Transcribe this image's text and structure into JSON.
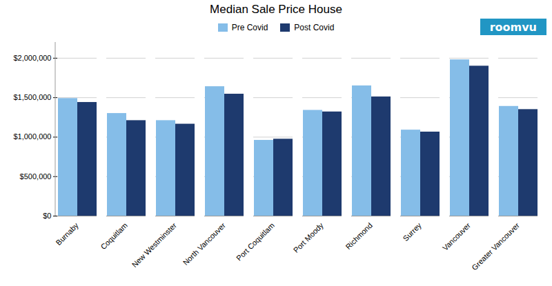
{
  "chart_data": {
    "type": "bar",
    "title": "Median Sale Price House",
    "categories": [
      "Burnaby",
      "Coquitlam",
      "New Westminster",
      "North Vancouver",
      "Port Coquitlam",
      "Port Moody",
      "Richmond",
      "Surrey",
      "Vancouver",
      "Greater Vancouver"
    ],
    "series": [
      {
        "name": "Pre Covid",
        "color": "#85bde8",
        "values": [
          1490000,
          1300000,
          1210000,
          1640000,
          960000,
          1340000,
          1650000,
          1090000,
          1980000,
          1390000
        ]
      },
      {
        "name": "Post Covid",
        "color": "#1e3a6e",
        "values": [
          1440000,
          1210000,
          1165000,
          1545000,
          975000,
          1320000,
          1510000,
          1065000,
          1900000,
          1350000
        ]
      }
    ],
    "ylim": [
      0,
      2200000
    ],
    "yticks": [
      {
        "value": 0,
        "label": "$0"
      },
      {
        "value": 500000,
        "label": "$500,000"
      },
      {
        "value": 1000000,
        "label": "$1,000,000"
      },
      {
        "value": 1500000,
        "label": "$1,500,000"
      },
      {
        "value": 2000000,
        "label": "$2,000,000"
      }
    ],
    "grid": true,
    "legend": "upper center",
    "annotations": [
      "roomvu"
    ]
  }
}
